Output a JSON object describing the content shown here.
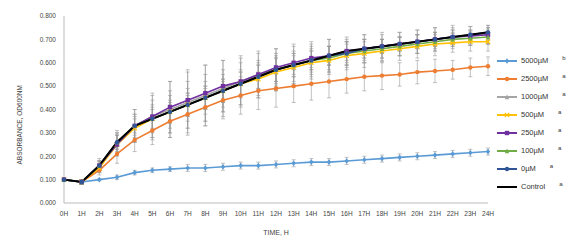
{
  "chart_data": {
    "type": "line",
    "x_label": "TIME, H",
    "y_label": "ABSORBANCE, OD600NM",
    "categories": [
      "0H",
      "1H",
      "2H",
      "3H",
      "4H",
      "5H",
      "6H",
      "7H",
      "8H",
      "9H",
      "10H",
      "11H",
      "12H",
      "13H",
      "14H",
      "15H",
      "16H",
      "17H",
      "18H",
      "19H",
      "20H",
      "21H",
      "22H",
      "23H",
      "24H"
    ],
    "ylim": [
      0,
      0.8
    ],
    "yticks": [
      {
        "value": 0,
        "label": "0.000"
      },
      {
        "value": 0.1,
        "label": "0.100"
      },
      {
        "value": 0.2,
        "label": "0.200"
      },
      {
        "value": 0.3,
        "label": "0.300"
      },
      {
        "value": 0.4,
        "label": "0.400"
      },
      {
        "value": 0.5,
        "label": "0.500"
      },
      {
        "value": 0.6,
        "label": "0.600"
      },
      {
        "value": 0.7,
        "label": "0.700"
      },
      {
        "value": 0.8,
        "label": "0.800"
      }
    ],
    "grid": false,
    "legend": "right",
    "series": [
      {
        "name": "5000µM",
        "significance": "b",
        "color": "#5b9bd5",
        "marker": "diamond",
        "values": [
          0.1,
          0.09,
          0.1,
          0.11,
          0.13,
          0.14,
          0.145,
          0.15,
          0.15,
          0.155,
          0.16,
          0.16,
          0.165,
          0.17,
          0.175,
          0.175,
          0.18,
          0.185,
          0.19,
          0.195,
          0.2,
          0.205,
          0.21,
          0.215,
          0.22
        ],
        "errors": [
          0.005,
          0.005,
          0.005,
          0.01,
          0.01,
          0.01,
          0.01,
          0.015,
          0.015,
          0.015,
          0.015,
          0.015,
          0.015,
          0.015,
          0.015,
          0.015,
          0.015,
          0.015,
          0.015,
          0.015,
          0.015,
          0.015,
          0.015,
          0.015,
          0.015
        ]
      },
      {
        "name": "2500µM",
        "significance": "a",
        "color": "#ed7d31",
        "marker": "circle",
        "values": [
          0.1,
          0.09,
          0.14,
          0.21,
          0.27,
          0.31,
          0.35,
          0.38,
          0.41,
          0.44,
          0.46,
          0.48,
          0.49,
          0.5,
          0.51,
          0.52,
          0.53,
          0.54,
          0.545,
          0.55,
          0.56,
          0.565,
          0.57,
          0.58,
          0.585
        ],
        "errors": [
          0.005,
          0.01,
          0.02,
          0.04,
          0.05,
          0.06,
          0.07,
          0.08,
          0.08,
          0.08,
          0.08,
          0.08,
          0.08,
          0.07,
          0.07,
          0.07,
          0.06,
          0.06,
          0.06,
          0.05,
          0.05,
          0.05,
          0.04,
          0.04,
          0.04
        ]
      },
      {
        "name": "1000µM",
        "significance": "a",
        "color": "#a5a5a5",
        "marker": "triangle",
        "values": [
          0.1,
          0.09,
          0.16,
          0.26,
          0.33,
          0.37,
          0.4,
          0.43,
          0.46,
          0.49,
          0.52,
          0.55,
          0.57,
          0.59,
          0.61,
          0.63,
          0.64,
          0.66,
          0.67,
          0.68,
          0.69,
          0.7,
          0.71,
          0.715,
          0.72
        ],
        "errors": [
          0.005,
          0.01,
          0.03,
          0.05,
          0.07,
          0.1,
          0.12,
          0.14,
          0.13,
          0.12,
          0.11,
          0.1,
          0.09,
          0.08,
          0.07,
          0.07,
          0.06,
          0.06,
          0.06,
          0.05,
          0.05,
          0.05,
          0.05,
          0.04,
          0.04
        ]
      },
      {
        "name": "500µM",
        "significance": "a",
        "color": "#ffc000",
        "marker": "x",
        "values": [
          0.1,
          0.09,
          0.15,
          0.25,
          0.32,
          0.36,
          0.39,
          0.42,
          0.45,
          0.48,
          0.51,
          0.53,
          0.56,
          0.58,
          0.6,
          0.61,
          0.63,
          0.64,
          0.65,
          0.66,
          0.67,
          0.68,
          0.685,
          0.69,
          0.69
        ],
        "errors": [
          0.005,
          0.01,
          0.02,
          0.04,
          0.06,
          0.08,
          0.09,
          0.1,
          0.1,
          0.09,
          0.09,
          0.08,
          0.08,
          0.07,
          0.07,
          0.06,
          0.06,
          0.06,
          0.05,
          0.05,
          0.05,
          0.05,
          0.04,
          0.04,
          0.04
        ]
      },
      {
        "name": "250µM",
        "significance": "a",
        "color": "#7030a0",
        "marker": "square",
        "values": [
          0.1,
          0.09,
          0.16,
          0.25,
          0.33,
          0.37,
          0.41,
          0.44,
          0.47,
          0.5,
          0.52,
          0.55,
          0.58,
          0.6,
          0.62,
          0.63,
          0.65,
          0.66,
          0.67,
          0.68,
          0.69,
          0.7,
          0.71,
          0.715,
          0.72
        ],
        "errors": [
          0.005,
          0.01,
          0.02,
          0.05,
          0.07,
          0.09,
          0.11,
          0.12,
          0.12,
          0.11,
          0.1,
          0.09,
          0.08,
          0.08,
          0.07,
          0.07,
          0.06,
          0.06,
          0.05,
          0.05,
          0.05,
          0.05,
          0.04,
          0.04,
          0.04
        ]
      },
      {
        "name": "100µM",
        "significance": "a",
        "color": "#70ad47",
        "marker": "triangle",
        "values": [
          0.1,
          0.09,
          0.16,
          0.26,
          0.33,
          0.36,
          0.39,
          0.42,
          0.45,
          0.48,
          0.51,
          0.54,
          0.57,
          0.59,
          0.61,
          0.62,
          0.64,
          0.65,
          0.66,
          0.67,
          0.68,
          0.69,
          0.7,
          0.705,
          0.71
        ],
        "errors": [
          0.005,
          0.01,
          0.02,
          0.04,
          0.05,
          0.06,
          0.07,
          0.07,
          0.07,
          0.07,
          0.06,
          0.06,
          0.06,
          0.05,
          0.05,
          0.05,
          0.05,
          0.04,
          0.04,
          0.04,
          0.04,
          0.03,
          0.03,
          0.03,
          0.03
        ]
      },
      {
        "name": "0µM",
        "significance": "a",
        "color": "#2f5597",
        "marker": "circle",
        "values": [
          0.1,
          0.09,
          0.16,
          0.26,
          0.33,
          0.36,
          0.39,
          0.42,
          0.45,
          0.48,
          0.51,
          0.54,
          0.57,
          0.59,
          0.61,
          0.63,
          0.64,
          0.66,
          0.67,
          0.68,
          0.69,
          0.7,
          0.71,
          0.72,
          0.73
        ],
        "errors": [
          0.005,
          0.01,
          0.02,
          0.03,
          0.04,
          0.05,
          0.05,
          0.05,
          0.05,
          0.05,
          0.05,
          0.05,
          0.05,
          0.04,
          0.04,
          0.04,
          0.04,
          0.04,
          0.03,
          0.03,
          0.03,
          0.03,
          0.03,
          0.02,
          0.02
        ]
      },
      {
        "name": "Control",
        "significance": "a",
        "color": "#000000",
        "marker": "none",
        "values": [
          0.1,
          0.09,
          0.16,
          0.26,
          0.33,
          0.36,
          0.39,
          0.42,
          0.45,
          0.48,
          0.51,
          0.54,
          0.57,
          0.59,
          0.61,
          0.63,
          0.65,
          0.66,
          0.67,
          0.68,
          0.69,
          0.7,
          0.71,
          0.72,
          0.73
        ],
        "errors": [
          0.005,
          0.01,
          0.02,
          0.03,
          0.03,
          0.04,
          0.04,
          0.05,
          0.05,
          0.05,
          0.05,
          0.05,
          0.05,
          0.05,
          0.04,
          0.04,
          0.04,
          0.04,
          0.03,
          0.03,
          0.03,
          0.03,
          0.03,
          0.02,
          0.02
        ]
      }
    ]
  }
}
